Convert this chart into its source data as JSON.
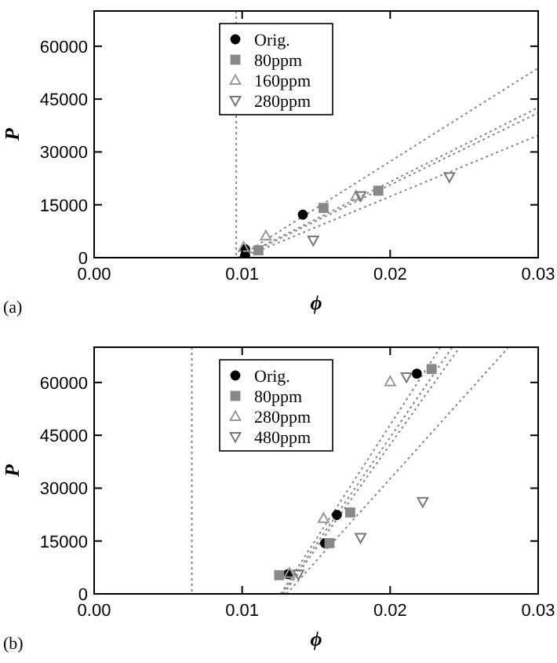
{
  "chart_data": [
    {
      "type": "scatter",
      "xlabel": "ϕ",
      "ylabel": "P",
      "annotations": [
        "(a)"
      ],
      "xlim": [
        0,
        0.03
      ],
      "ylim": [
        0,
        70000
      ],
      "xticks": [
        {
          "value": 0,
          "label": "0.00"
        },
        0.01,
        0.02,
        0.03
      ],
      "yticks": [
        0,
        15000,
        30000,
        45000,
        60000
      ],
      "legend": "top",
      "grid": false,
      "ref_lines": [
        {
          "axis": "x",
          "value": 0.0096,
          "color": "#888888",
          "line_style": "dotted"
        }
      ],
      "series": [
        {
          "name": "Orig.",
          "color": "#000000",
          "marker": "circle",
          "x": [
            0.0102,
            0.0102,
            0.0141
          ],
          "values": [
            600,
            2400,
            12200
          ]
        },
        {
          "name": "80ppm",
          "color": "#888888",
          "marker": "square",
          "x": [
            0.0111,
            0.0155,
            0.0192
          ],
          "values": [
            2100,
            14100,
            19000
          ]
        },
        {
          "name": "160ppm",
          "color": "#999999",
          "marker": "triangle",
          "x": [
            0.0101,
            0.0116,
            0.0177
          ],
          "values": [
            3000,
            6200,
            17500
          ]
        },
        {
          "name": "280ppm",
          "color": "#777777",
          "marker": "triangle-down",
          "x": [
            0.0148,
            0.018,
            0.024
          ],
          "values": [
            4900,
            17500,
            22900
          ]
        },
        {
          "type": "line",
          "color": "#888888",
          "line_style": "dotted",
          "marker": "none",
          "x": [
            0.0097,
            0.03
          ],
          "values": [
            0,
            53800
          ]
        },
        {
          "type": "line",
          "color": "#888888",
          "line_style": "dotted",
          "marker": "none",
          "x": [
            0.0098,
            0.03
          ],
          "values": [
            0,
            42600
          ]
        },
        {
          "type": "line",
          "color": "#888888",
          "line_style": "dotted",
          "marker": "none",
          "x": [
            0.0099,
            0.03
          ],
          "values": [
            0,
            41100
          ]
        },
        {
          "type": "line",
          "color": "#888888",
          "line_style": "dotted",
          "marker": "none",
          "x": [
            0.01,
            0.03
          ],
          "values": [
            0,
            34700
          ]
        }
      ]
    },
    {
      "type": "scatter",
      "xlabel": "ϕ",
      "ylabel": "P",
      "annotations": [
        "(b)"
      ],
      "xlim": [
        0,
        0.03
      ],
      "ylim": [
        0,
        70000
      ],
      "xticks": [
        {
          "value": 0,
          "label": "0.00"
        },
        0.01,
        0.02,
        0.03
      ],
      "yticks": [
        0,
        15000,
        30000,
        45000,
        60000
      ],
      "legend": "top",
      "grid": false,
      "ref_lines": [
        {
          "axis": "x",
          "value": 0.0066,
          "color": "#888888",
          "line_style": "dotted"
        }
      ],
      "series": [
        {
          "name": "Orig.",
          "color": "#000000",
          "marker": "circle",
          "x": [
            0.0131,
            0.0156,
            0.0164,
            0.0218
          ],
          "values": [
            5600,
            14400,
            22400,
            62500
          ]
        },
        {
          "name": "80ppm",
          "color": "#888888",
          "marker": "square",
          "x": [
            0.0125,
            0.0159,
            0.0173,
            0.0228
          ],
          "values": [
            5300,
            14400,
            23100,
            63800
          ]
        },
        {
          "name": "280ppm",
          "color": "#999999",
          "marker": "triangle",
          "x": [
            0.0132,
            0.0155,
            0.02
          ],
          "values": [
            5900,
            21500,
            60300
          ]
        },
        {
          "name": "480ppm",
          "color": "#777777",
          "marker": "triangle-down",
          "x": [
            0.0138,
            0.018,
            0.0211,
            0.0222
          ],
          "values": [
            5500,
            15900,
            61500,
            26100
          ]
        },
        {
          "type": "line",
          "color": "#888888",
          "line_style": "dotted",
          "marker": "none",
          "x": [
            0.0126,
            0.0234
          ],
          "values": [
            0,
            70000
          ]
        },
        {
          "type": "line",
          "color": "#888888",
          "line_style": "dotted",
          "marker": "none",
          "x": [
            0.0127,
            0.0242
          ],
          "values": [
            0,
            70000
          ]
        },
        {
          "type": "line",
          "color": "#888888",
          "line_style": "dotted",
          "marker": "none",
          "x": [
            0.0128,
            0.0247
          ],
          "values": [
            0,
            70000
          ]
        },
        {
          "type": "line",
          "color": "#888888",
          "line_style": "dotted",
          "marker": "none",
          "x": [
            0.013,
            0.028
          ],
          "values": [
            0,
            70000
          ]
        }
      ]
    }
  ]
}
